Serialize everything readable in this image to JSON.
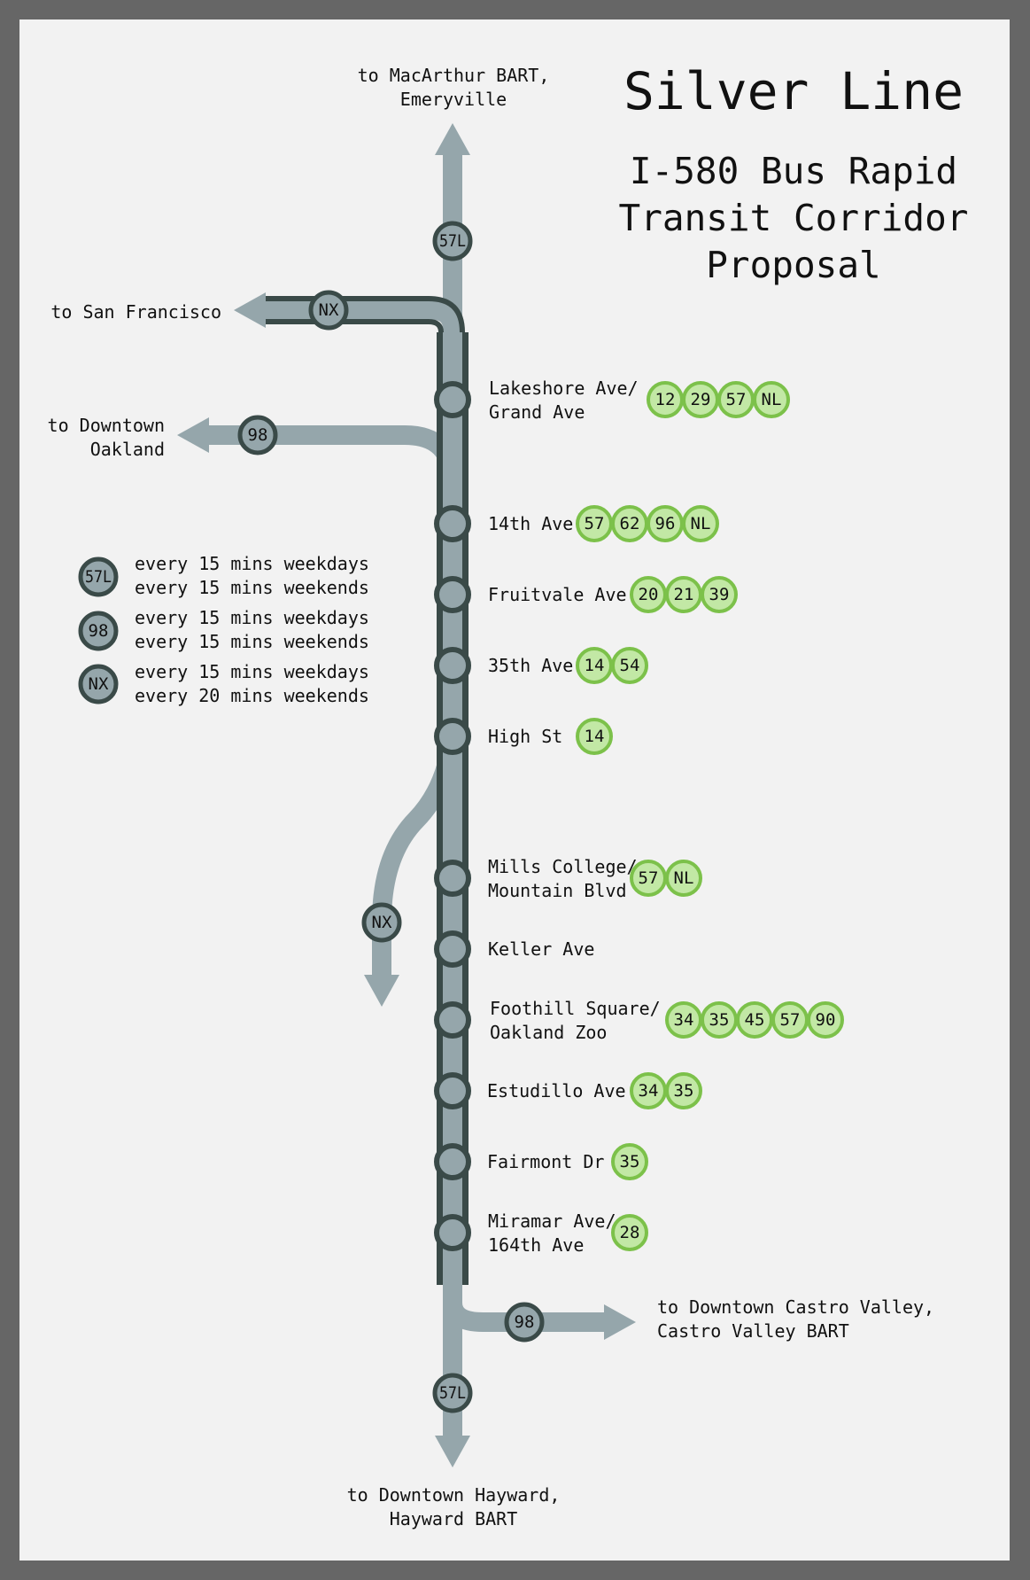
{
  "title": "Silver Line",
  "subtitle": [
    "I-580 Bus Rapid",
    "Transit Corridor",
    "Proposal"
  ],
  "colors": {
    "frame": "#666666",
    "paper": "#f2f2f2",
    "trunk": "#3a4a48",
    "branch": "#95a6ab",
    "connection_fill": "#c2e8a5",
    "connection_ring": "#7cc14a"
  },
  "destinations": {
    "north": [
      "to MacArthur BART,",
      "Emeryville"
    ],
    "west": "to San Francisco",
    "downtown_oakland": [
      "to Downtown",
      "Oakland"
    ],
    "castro_valley": [
      "to Downtown Castro Valley,",
      "Castro Valley BART"
    ],
    "south": [
      "to Downtown Hayward,",
      "Hayward BART"
    ]
  },
  "services": {
    "s57l": "57L",
    "s98": "98",
    "snx": "NX"
  },
  "legend": [
    {
      "service": "57L",
      "weekdays": "every 15 mins weekdays",
      "weekends": "every 15 mins weekends"
    },
    {
      "service": "98",
      "weekdays": "every 15 mins weekdays",
      "weekends": "every 15 mins weekends"
    },
    {
      "service": "NX",
      "weekdays": "every 15 mins weekdays",
      "weekends": "every 20 mins weekends"
    }
  ],
  "stops": [
    {
      "name": [
        "Lakeshore Ave/",
        "Grand Ave"
      ],
      "connections": [
        "12",
        "29",
        "57",
        "NL"
      ]
    },
    {
      "name": [
        "14th Ave"
      ],
      "connections": [
        "57",
        "62",
        "96",
        "NL"
      ]
    },
    {
      "name": [
        "Fruitvale Ave"
      ],
      "connections": [
        "20",
        "21",
        "39"
      ]
    },
    {
      "name": [
        "35th Ave"
      ],
      "connections": [
        "14",
        "54"
      ]
    },
    {
      "name": [
        "High St"
      ],
      "connections": [
        "14"
      ]
    },
    {
      "name": [
        "Mills College/",
        "Mountain Blvd"
      ],
      "connections": [
        "57",
        "NL"
      ]
    },
    {
      "name": [
        "Keller Ave"
      ],
      "connections": []
    },
    {
      "name": [
        "Foothill Square/",
        "Oakland Zoo"
      ],
      "connections": [
        "34",
        "35",
        "45",
        "57",
        "90"
      ]
    },
    {
      "name": [
        "Estudillo Ave"
      ],
      "connections": [
        "34",
        "35"
      ]
    },
    {
      "name": [
        "Fairmont Dr"
      ],
      "connections": [
        "35"
      ]
    },
    {
      "name": [
        "Miramar Ave/",
        "164th Ave"
      ],
      "connections": [
        "28"
      ]
    }
  ]
}
